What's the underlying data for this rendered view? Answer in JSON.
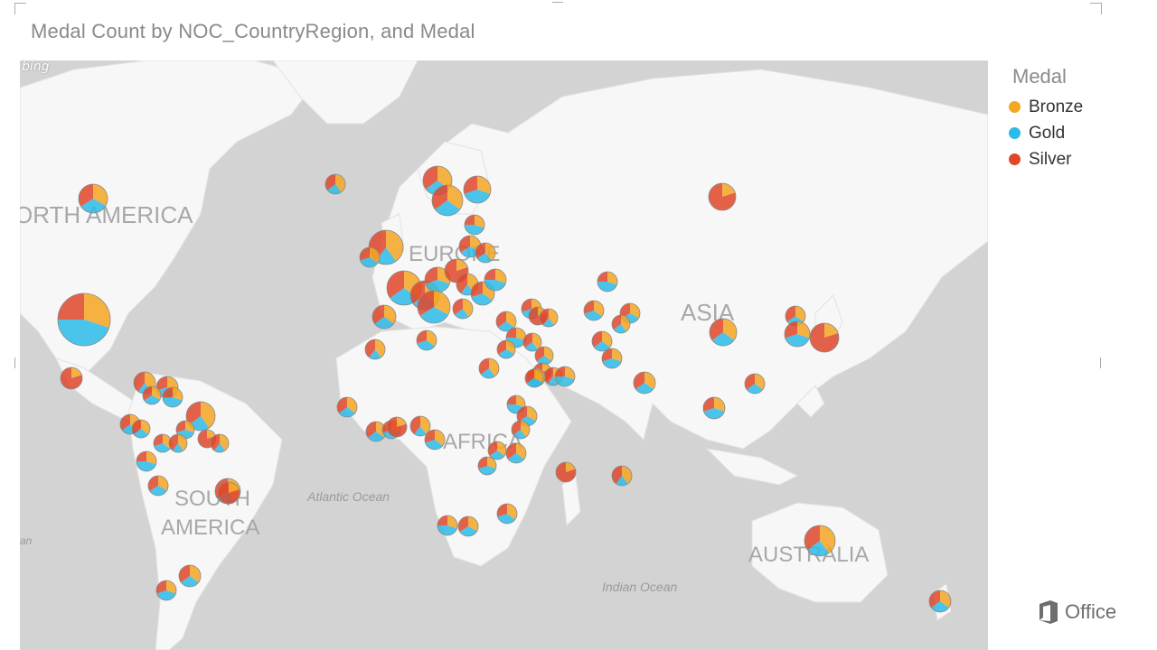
{
  "visual": {
    "title": "Medal Count by NOC_CountryRegion, and Medal"
  },
  "map": {
    "provider_logo": "bing",
    "labels": {
      "north_america": "ORTH AMERICA",
      "europe": "EUROPE",
      "asia": "ASIA",
      "africa": "AFRICA",
      "south_america_1": "SOUTH",
      "south_america_2": "AMERICA",
      "australia": "AUSTRALIA",
      "atlantic": "Atlantic Ocean",
      "indian": "Indian Ocean",
      "left_edge": "an"
    },
    "colors": {
      "land": "#f7f7f7",
      "water": "#d3d3d3",
      "label": "#a3a3a3"
    }
  },
  "legend": {
    "title": "Medal",
    "items": [
      {
        "label": "Bronze",
        "color": "#f5a623"
      },
      {
        "label": "Gold",
        "color": "#2bbbe8"
      },
      {
        "label": "Silver",
        "color": "#e0472a"
      }
    ]
  },
  "footer": {
    "brand": "Office"
  },
  "chart_data": {
    "type": "map-pie",
    "title": "Medal Count by NOC_CountryRegion, and Medal",
    "legend_title": "Medal",
    "series": [
      "Bronze",
      "Gold",
      "Silver"
    ],
    "marker_shares": [
      {
        "size": 4,
        "shares": [
          0.3,
          0.45,
          0.25
        ]
      },
      {
        "size": 2,
        "shares": [
          0.33,
          0.33,
          0.34
        ]
      },
      {
        "size": 2,
        "shares": [
          0.4,
          0.25,
          0.35
        ]
      },
      {
        "size": 2,
        "shares": [
          0.35,
          0.3,
          0.35
        ]
      },
      {
        "size": 2,
        "shares": [
          0.35,
          0.3,
          0.35
        ]
      },
      {
        "size": 2,
        "shares": [
          0.3,
          0.4,
          0.3
        ]
      },
      {
        "size": 1,
        "shares": [
          0.2,
          0.0,
          0.8
        ]
      },
      {
        "size": 2,
        "shares": [
          0.4,
          0.2,
          0.4
        ]
      },
      {
        "size": 2,
        "shares": [
          0.35,
          0.35,
          0.3
        ]
      }
    ]
  }
}
